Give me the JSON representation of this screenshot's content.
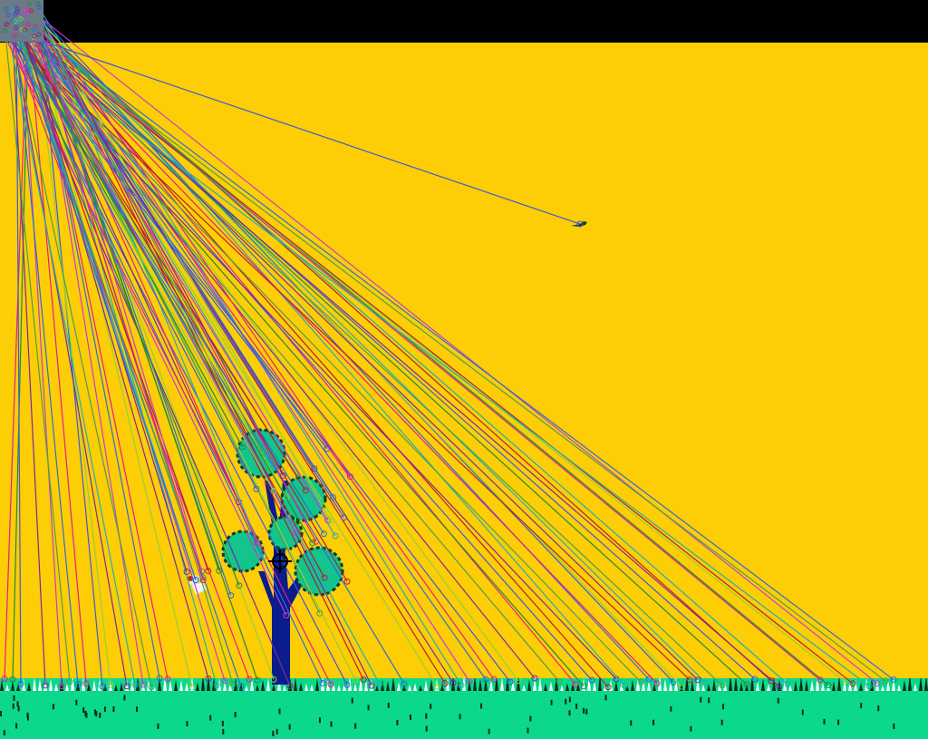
{
  "scene": {
    "sky_color": "#FDCD06",
    "top_bar_color": "#000000",
    "ground_color": "#0BD88A",
    "grass_dark_color": "#0A2A18",
    "tree_trunk_color": "#0B1C8C",
    "tree_foliage_color": "#13C48C",
    "duck_color": "#1B3A2A"
  },
  "overlay": {
    "line_palette": [
      "#E0208A",
      "#1E8C3A",
      "#3B5BD8",
      "#8FD23A",
      "#B02030",
      "#7A2A9A",
      "#20B0B0",
      "#C040C8",
      "#4AA050",
      "#2B6FD0"
    ]
  },
  "sprites": {
    "tree_icon": "tree-sprite",
    "duck_icon": "flying-duck-sprite",
    "crosshair_icon": "crosshair-cursor",
    "dog_icon": "hunting-dog-sprite"
  }
}
